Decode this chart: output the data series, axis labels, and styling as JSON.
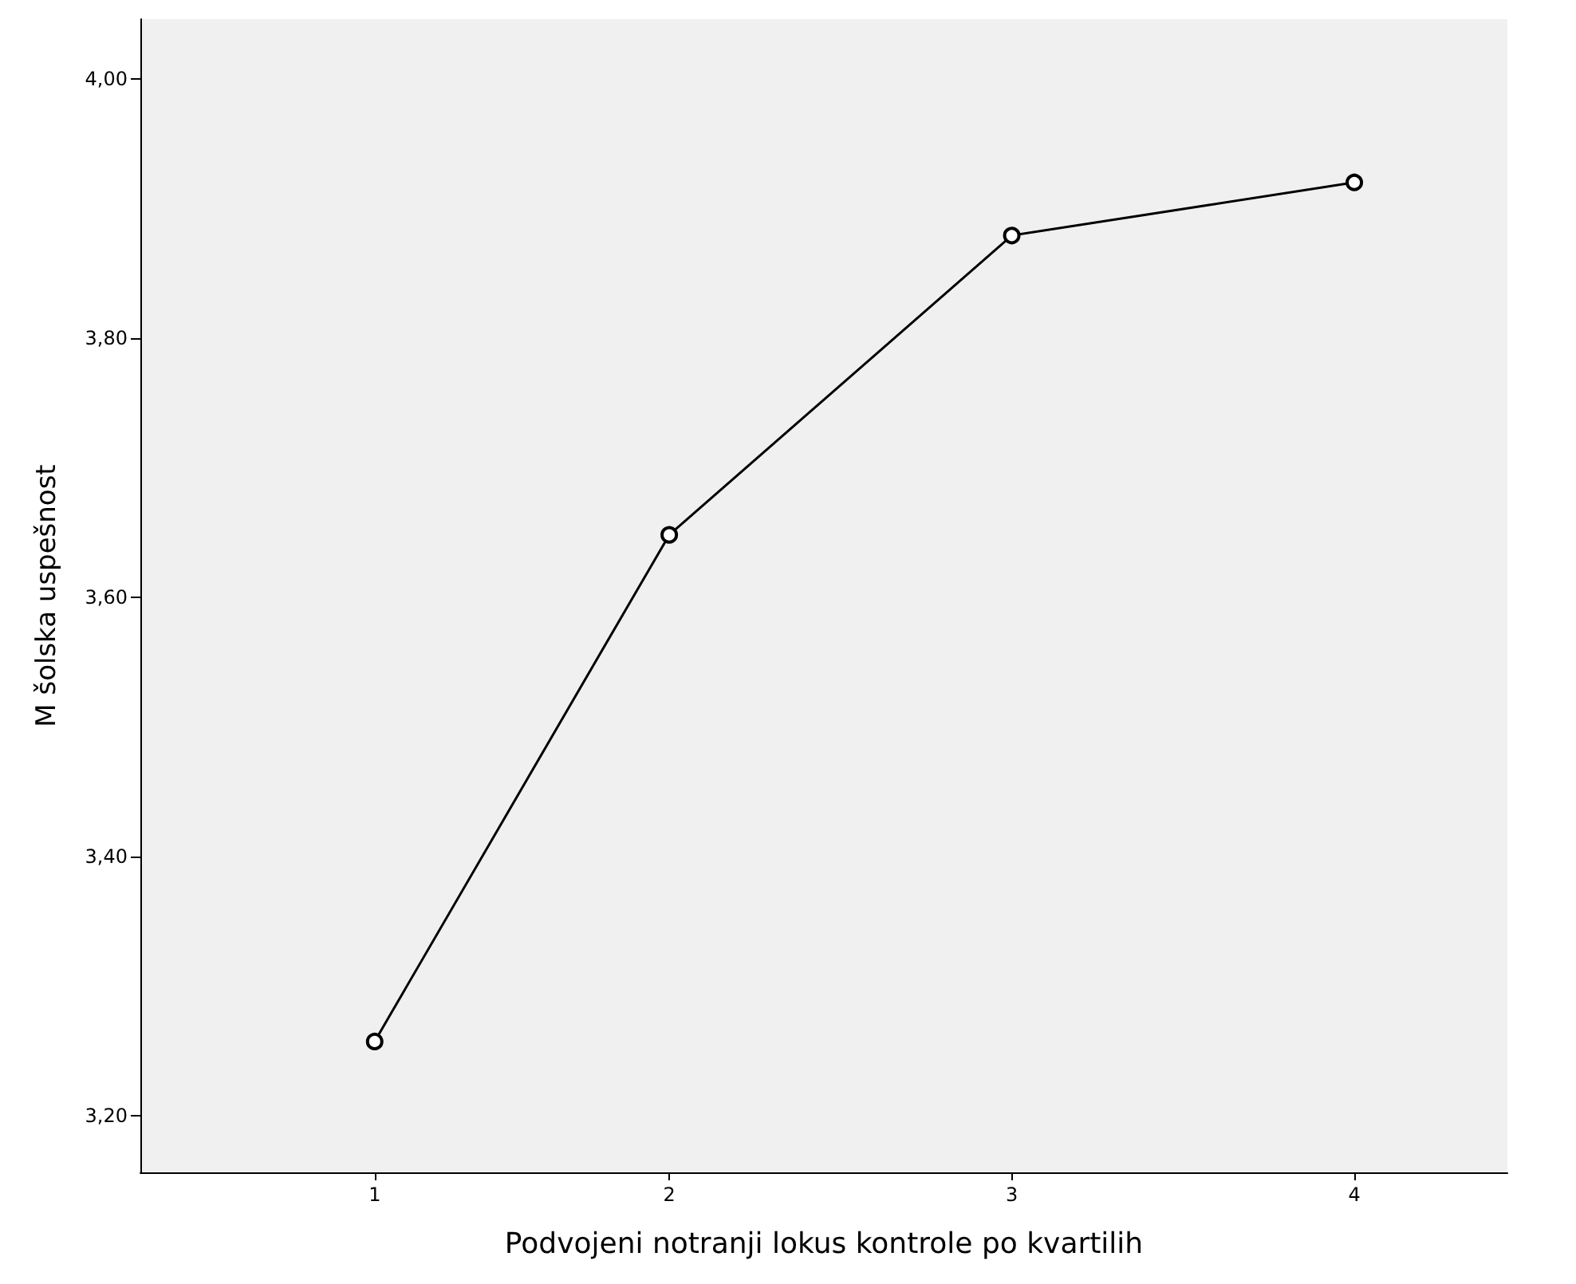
{
  "chart_data": {
    "type": "line",
    "xlabel": "Podvojeni notranji lokus kontrole po kvartilih",
    "ylabel": "M šolska uspešnost",
    "x": [
      1.14,
      2,
      3,
      4
    ],
    "series": [
      {
        "color": "#000000",
        "values": [
          3.257,
          3.648,
          3.879,
          3.92
        ]
      }
    ],
    "xlim": [
      0.456,
      4.447
    ],
    "xticks": [
      {
        "value": 1.14,
        "label": "1"
      },
      {
        "value": 2,
        "label": "2"
      },
      {
        "value": 3,
        "label": "3"
      },
      {
        "value": 4,
        "label": "4"
      }
    ],
    "ylim": [
      3.156,
      4.046
    ],
    "yticks": [
      {
        "value": 3.2,
        "label": "3,20"
      },
      {
        "value": 3.4,
        "label": "3,40"
      },
      {
        "value": 3.6,
        "label": "3,60"
      },
      {
        "value": 3.8,
        "label": "3,80"
      },
      {
        "value": 4.0,
        "label": "4,00"
      }
    ],
    "marker": "circle",
    "line_style": "solid"
  }
}
